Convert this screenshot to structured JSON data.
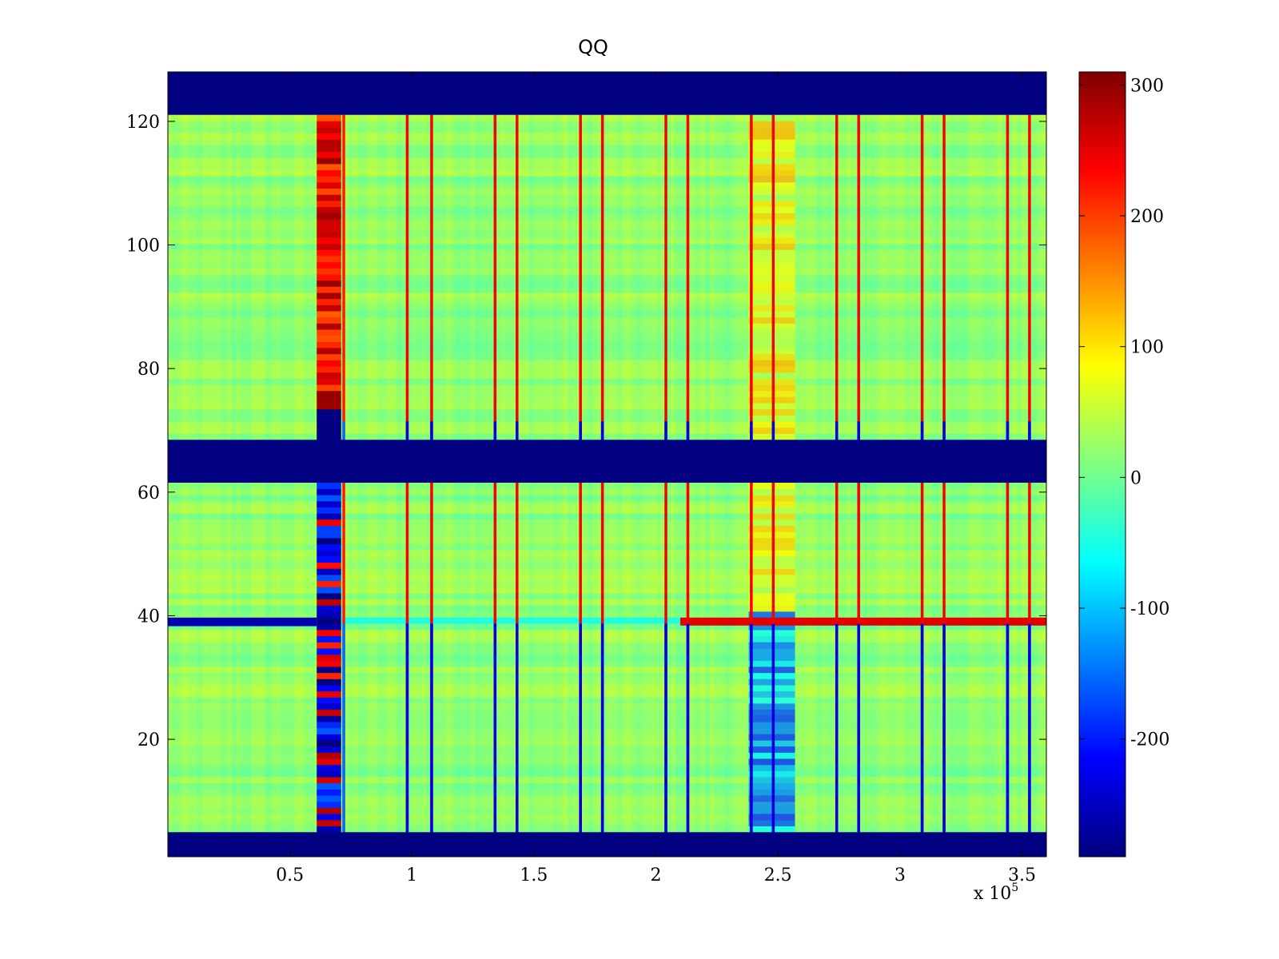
{
  "chart_data": {
    "type": "heatmap",
    "title": "QQ",
    "xlabel": "",
    "ylabel": "",
    "x_exponent_label": "x 10",
    "x_exponent_power": "5",
    "xlim": [
      0,
      3.6
    ],
    "ylim": [
      1,
      128
    ],
    "xticks": [
      0.5,
      1,
      1.5,
      2,
      2.5,
      3,
      3.5
    ],
    "xtick_labels": [
      "0.5",
      "1",
      "1.5",
      "2",
      "2.5",
      "3",
      "3.5"
    ],
    "yticks": [
      20,
      40,
      60,
      80,
      100,
      120
    ],
    "ytick_labels": [
      "20",
      "40",
      "60",
      "80",
      "100",
      "120"
    ],
    "colormap": "jet",
    "clim": [
      -290,
      310
    ],
    "colorbar_ticks": [
      300,
      200,
      100,
      0,
      -100,
      -200
    ],
    "colorbar_tick_labels": [
      "300",
      "200",
      "100",
      "0",
      "-100",
      "-200"
    ],
    "masked_value": -290,
    "masked_row_bands": [
      [
        1,
        4
      ],
      [
        62,
        68
      ],
      [
        122,
        128
      ]
    ],
    "background_level": 20,
    "high_variance_block": {
      "x_range": [
        0.61,
        0.71
      ],
      "upper_rows_value": 240,
      "lower_rows_value": -230,
      "masked_rows": [
        68,
        73
      ]
    },
    "sparse_segment": {
      "x_range": [
        2.38,
        2.57
      ],
      "upper_rows_value": 80,
      "lower_rows_value": -120
    },
    "vertical_lines": [
      {
        "x": 0.72,
        "upper": 220,
        "lower": -150
      },
      {
        "x": 0.98,
        "upper": 240,
        "lower": -230
      },
      {
        "x": 1.08,
        "upper": 240,
        "lower": -230
      },
      {
        "x": 1.34,
        "upper": 240,
        "lower": -230
      },
      {
        "x": 1.43,
        "upper": 240,
        "lower": -230
      },
      {
        "x": 1.69,
        "upper": 240,
        "lower": -230
      },
      {
        "x": 1.78,
        "upper": 240,
        "lower": -230
      },
      {
        "x": 2.04,
        "upper": 240,
        "lower": -230
      },
      {
        "x": 2.13,
        "upper": 240,
        "lower": -230
      },
      {
        "x": 2.39,
        "upper": 240,
        "lower": -230
      },
      {
        "x": 2.48,
        "upper": 240,
        "lower": -230
      },
      {
        "x": 2.74,
        "upper": 240,
        "lower": -230
      },
      {
        "x": 2.83,
        "upper": 240,
        "lower": -230
      },
      {
        "x": 3.09,
        "upper": 240,
        "lower": -230
      },
      {
        "x": 3.18,
        "upper": 240,
        "lower": -230
      },
      {
        "x": 3.44,
        "upper": 240,
        "lower": -230
      },
      {
        "x": 3.53,
        "upper": 240,
        "lower": -230
      }
    ],
    "special_row": {
      "row": 39,
      "left_value": -260,
      "left_x_range": [
        0,
        0.61
      ],
      "right_value": 250,
      "right_x_range": [
        2.1,
        3.6
      ]
    }
  }
}
